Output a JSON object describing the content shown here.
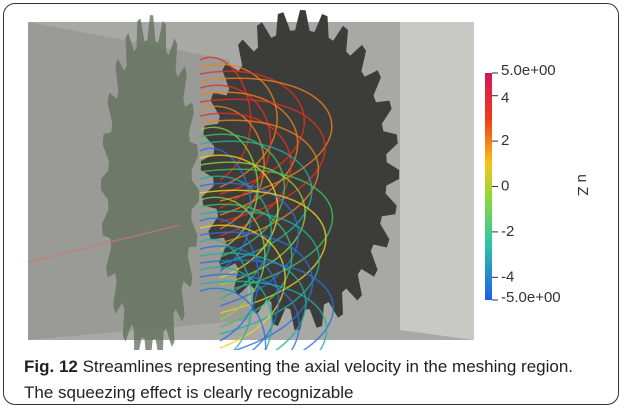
{
  "figure": {
    "colorbar": {
      "title": "u Z",
      "lim": [
        -5,
        5
      ],
      "ticks": [
        {
          "value": 5,
          "label": "5.0e+00"
        },
        4,
        2,
        0,
        -2,
        -4,
        {
          "value": -5,
          "label": "-5.0e+00"
        }
      ]
    },
    "caption": {
      "label": "Fig. 12",
      "text": "Streamlines representing the axial velocity in the meshing region. The squeezing effect is clearly recognizable"
    }
  }
}
